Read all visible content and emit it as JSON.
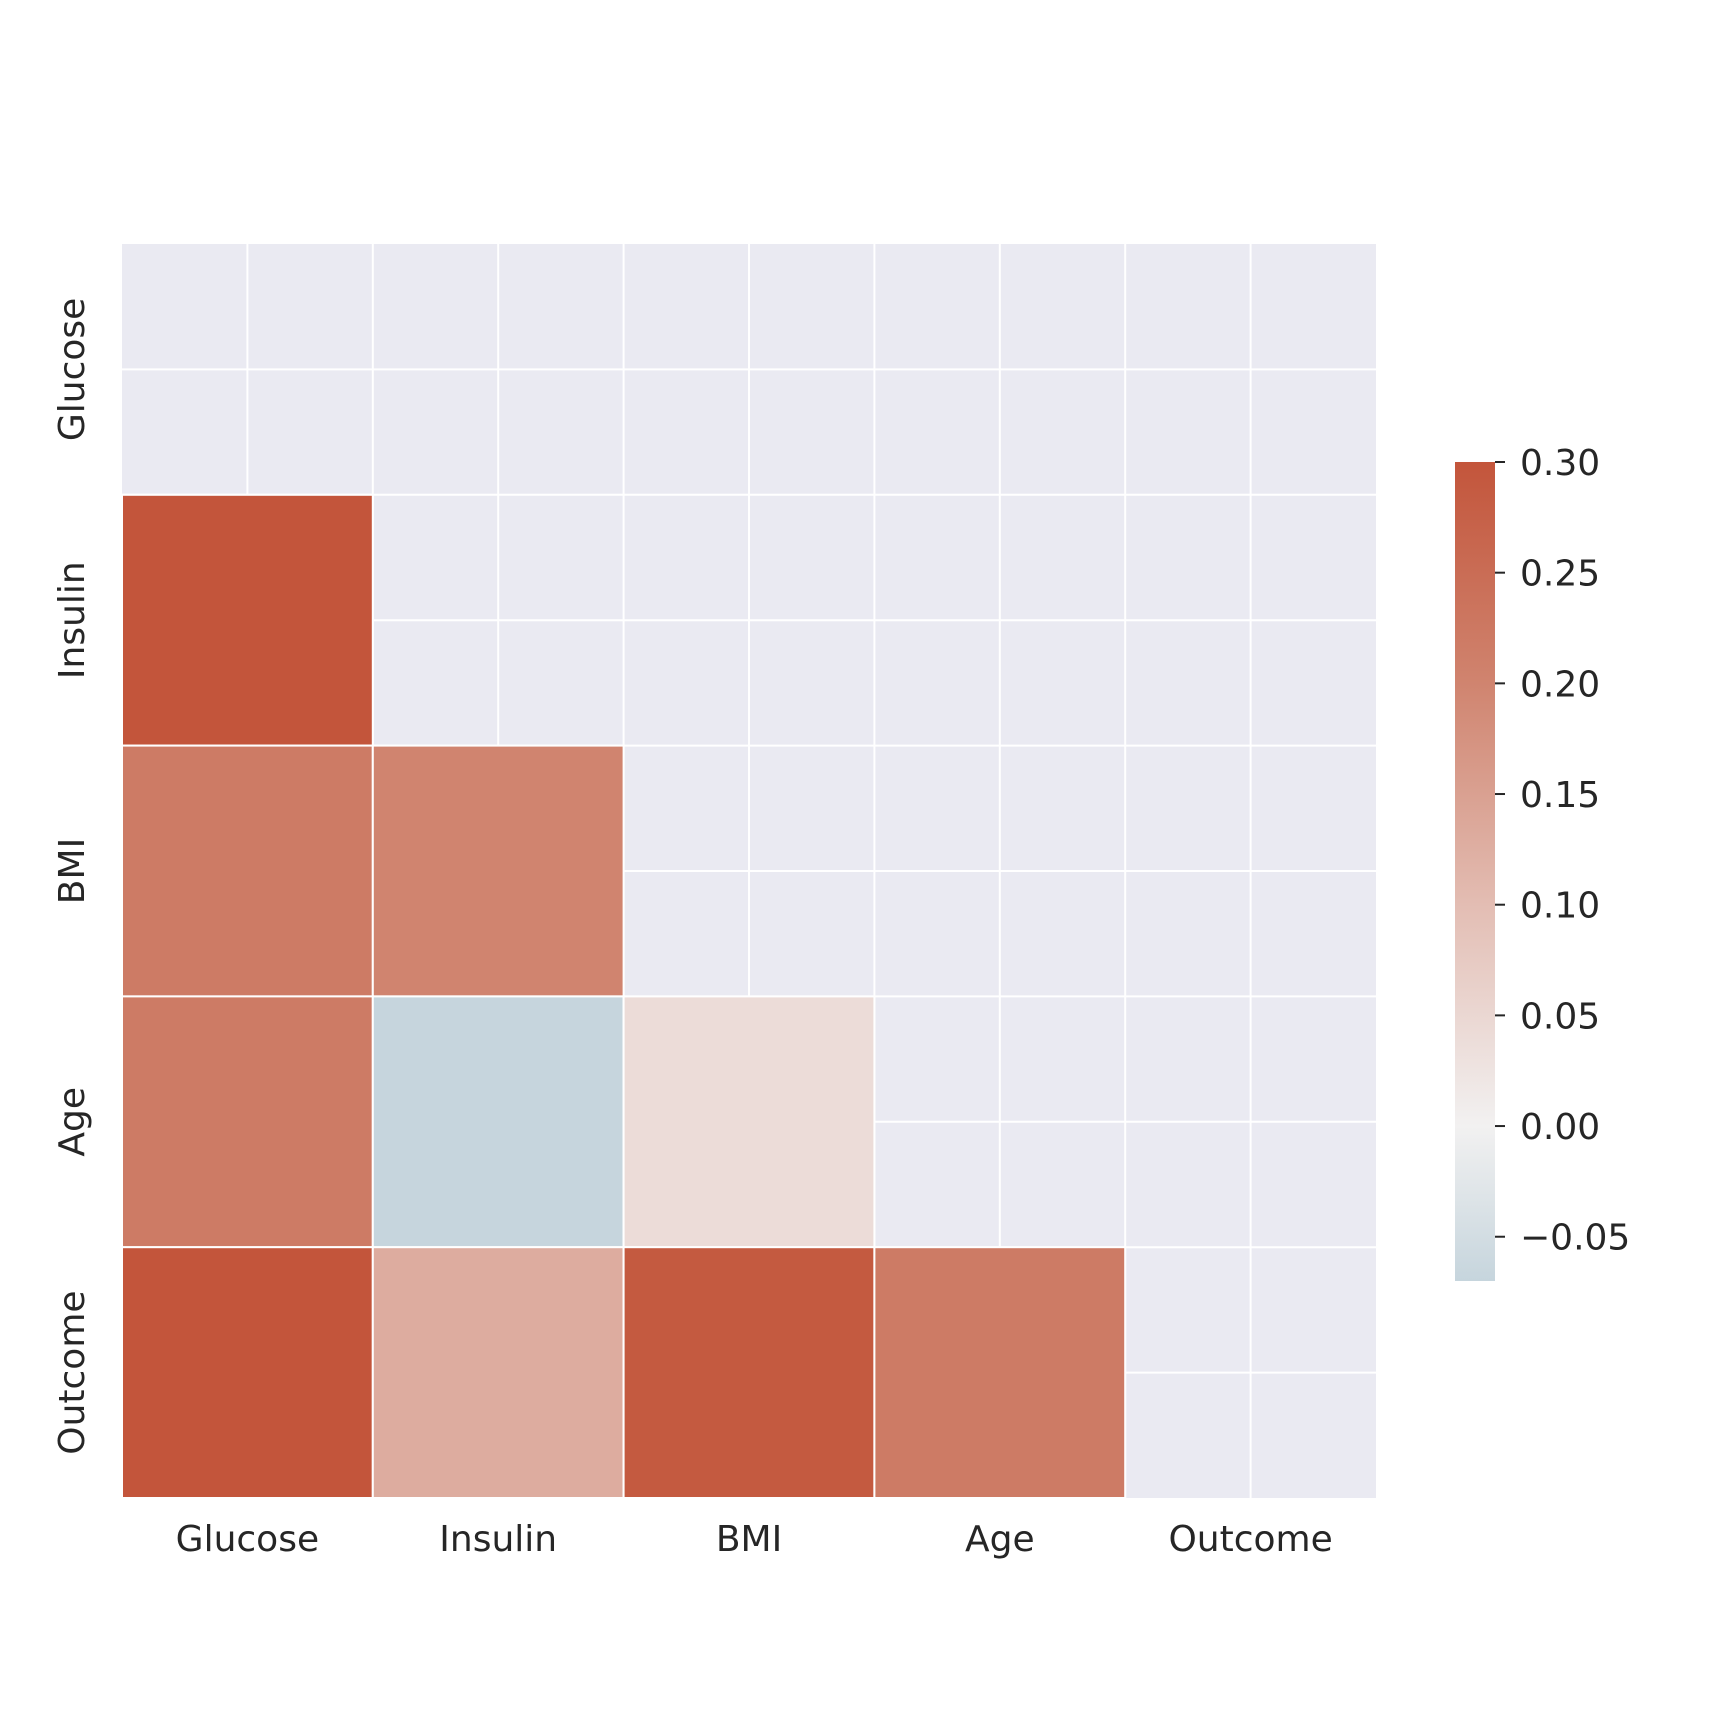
{
  "chart_data": {
    "type": "heatmap",
    "title": "",
    "xlabel": "",
    "ylabel": "",
    "categories": [
      "Glucose",
      "Insulin",
      "BMI",
      "Age",
      "Outcome"
    ],
    "x_tick_labels": [
      "Glucose",
      "Insulin",
      "BMI",
      "Age",
      "Outcome"
    ],
    "y_tick_labels": [
      "Glucose",
      "Insulin",
      "BMI",
      "Age",
      "Outcome"
    ],
    "mask": "upper triangle including diagonal",
    "values": [
      [
        null,
        null,
        null,
        null,
        null
      ],
      [
        0.33,
        null,
        null,
        null,
        null
      ],
      [
        0.22,
        0.2,
        null,
        null,
        null
      ],
      [
        0.22,
        -0.07,
        0.04,
        null,
        null
      ],
      [
        0.47,
        0.13,
        0.29,
        0.22,
        null
      ]
    ],
    "colorbar": {
      "vmin": -0.07,
      "vmax": 0.3,
      "ticks": [
        -0.05,
        0.0,
        0.05,
        0.1,
        0.15,
        0.2,
        0.25,
        0.3
      ],
      "tick_labels": [
        "−0.05",
        "0.00",
        "0.05",
        "0.10",
        "0.15",
        "0.20",
        "0.25",
        "0.30"
      ],
      "colormap": "diverging",
      "stops": [
        {
          "value": -0.07,
          "color": "#c6d5dd"
        },
        {
          "value": 0.0,
          "color": "#f2f1f1"
        },
        {
          "value": 0.1,
          "color": "#e3bdb3"
        },
        {
          "value": 0.2,
          "color": "#d0846f"
        },
        {
          "value": 0.3,
          "color": "#c3553b"
        }
      ]
    },
    "background_color": "#eaeaf2",
    "grid_color": "#ffffff",
    "grid": true
  }
}
